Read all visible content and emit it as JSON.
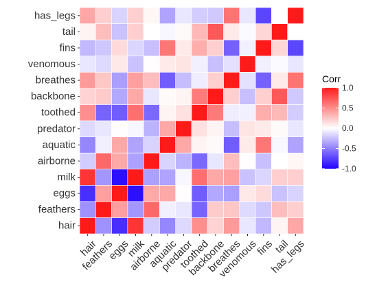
{
  "chart_data": {
    "type": "heatmap",
    "title": "",
    "xlabel": "",
    "ylabel": "",
    "x_categories": [
      "hair",
      "feathers",
      "eggs",
      "milk",
      "airborne",
      "aquatic",
      "predator",
      "toothed",
      "backbone",
      "breathes",
      "venomous",
      "fins",
      "tail",
      "has_legs"
    ],
    "y_categories": [
      "hair",
      "feathers",
      "eggs",
      "milk",
      "airborne",
      "aquatic",
      "predator",
      "toothed",
      "backbone",
      "breathes",
      "venomous",
      "fins",
      "tail",
      "has_legs"
    ],
    "values": [
      [
        1.0,
        -0.43,
        -0.82,
        0.88,
        -0.2,
        -0.47,
        -0.15,
        0.49,
        0.19,
        0.44,
        -0.1,
        -0.28,
        0.05,
        0.39
      ],
      [
        -0.43,
        1.0,
        0.42,
        -0.41,
        0.66,
        -0.06,
        -0.1,
        -0.61,
        0.23,
        0.25,
        -0.15,
        -0.22,
        0.29,
        0.21
      ],
      [
        -0.82,
        0.42,
        1.0,
        -0.94,
        0.38,
        0.38,
        0.01,
        -0.64,
        -0.34,
        -0.38,
        0.1,
        0.16,
        -0.24,
        -0.17
      ],
      [
        0.88,
        -0.41,
        -0.94,
        1.0,
        -0.37,
        -0.36,
        -0.03,
        0.63,
        0.38,
        0.42,
        -0.24,
        -0.16,
        0.21,
        0.21
      ],
      [
        -0.2,
        0.66,
        0.38,
        -0.37,
        1.0,
        -0.17,
        -0.3,
        -0.59,
        -0.1,
        0.29,
        0.01,
        -0.25,
        0.0,
        0.04
      ],
      [
        -0.47,
        -0.06,
        0.38,
        -0.36,
        -0.17,
        1.0,
        0.38,
        0.05,
        0.02,
        -0.64,
        0.09,
        0.6,
        -0.03,
        -0.36
      ],
      [
        -0.15,
        -0.1,
        0.01,
        -0.03,
        -0.3,
        0.38,
        1.0,
        0.13,
        0.05,
        -0.26,
        0.12,
        0.09,
        0.02,
        -0.1
      ],
      [
        0.49,
        -0.61,
        -0.64,
        0.63,
        -0.59,
        0.05,
        0.13,
        1.0,
        0.58,
        -0.07,
        -0.06,
        0.36,
        0.31,
        -0.2
      ],
      [
        0.19,
        0.23,
        -0.34,
        0.38,
        -0.1,
        0.02,
        0.05,
        0.58,
        1.0,
        0.21,
        -0.25,
        0.21,
        0.73,
        -0.21
      ],
      [
        0.44,
        0.25,
        -0.38,
        0.42,
        0.29,
        -0.64,
        -0.26,
        -0.07,
        0.21,
        1.0,
        -0.12,
        -0.62,
        0.09,
        0.61
      ],
      [
        -0.1,
        -0.15,
        0.1,
        -0.24,
        0.01,
        0.09,
        0.12,
        -0.06,
        -0.25,
        -0.12,
        1.0,
        -0.06,
        -0.02,
        -0.1
      ],
      [
        -0.28,
        -0.22,
        0.16,
        -0.16,
        -0.25,
        0.6,
        0.09,
        0.36,
        0.21,
        -0.62,
        -0.06,
        1.0,
        0.18,
        -0.73
      ],
      [
        0.05,
        0.29,
        -0.24,
        0.21,
        0.0,
        -0.03,
        0.02,
        0.31,
        0.73,
        0.09,
        -0.02,
        0.18,
        1.0,
        0.0
      ],
      [
        0.39,
        0.21,
        -0.17,
        0.21,
        0.04,
        -0.36,
        -0.1,
        -0.2,
        -0.21,
        0.61,
        -0.1,
        -0.73,
        0.0,
        1.0
      ]
    ],
    "color_scale": {
      "low": "#2000ff",
      "mid": "#ffffff",
      "high": "#ff1a1a",
      "limits": [
        -1.0,
        1.0
      ]
    },
    "legend": {
      "title": "Corr",
      "ticks": [
        "1.0",
        "0.5",
        "0.0",
        "-0.5",
        "-1.0"
      ],
      "tick_values": [
        1.0,
        0.5,
        0.0,
        -0.5,
        -1.0
      ],
      "placement": "right"
    },
    "grid": true
  },
  "colors": {
    "panel_background": "#ebebeb",
    "gridline": "#ffffff",
    "text": "#333333"
  }
}
